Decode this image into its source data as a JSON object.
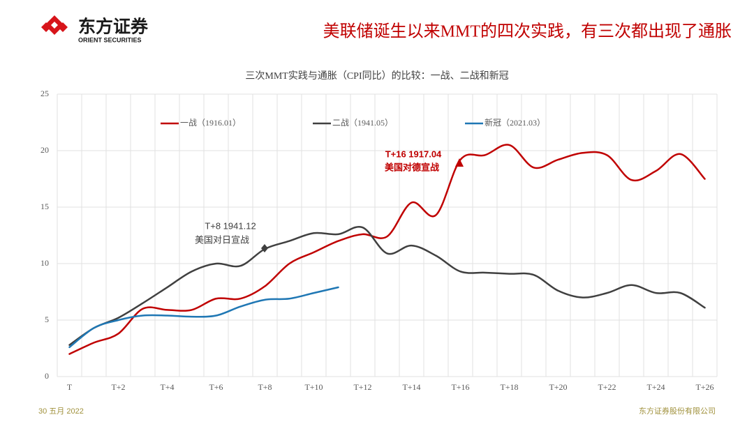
{
  "header": {
    "logo": "东方证券",
    "logo_sub": "ORIENT SECURITIES",
    "title": "美联储诞生以来MMT的四次实践，有三次都出现了通胀"
  },
  "chart_data": {
    "type": "line",
    "title": "三次MMT实践与通胀（CPI同比）的比较：一战、二战和新冠",
    "categories": [
      "T",
      null,
      "T+2",
      null,
      "T+4",
      null,
      "T+6",
      null,
      "T+8",
      null,
      "T+10",
      null,
      "T+12",
      null,
      "T+14",
      null,
      "T+16",
      null,
      "T+18",
      null,
      "T+20",
      null,
      "T+22",
      null,
      "T+24",
      null,
      "T+26"
    ],
    "series": [
      {
        "name": "一战（1916.01）",
        "color": "#c00000",
        "values": [
          2.0,
          3.0,
          3.8,
          6.0,
          5.9,
          5.9,
          6.9,
          6.9,
          8.0,
          10.0,
          11.0,
          12.0,
          12.6,
          12.4,
          15.4,
          14.3,
          19.2,
          19.6,
          20.5,
          18.5,
          19.2,
          19.8,
          19.6,
          17.4,
          18.2,
          19.7,
          17.5
        ]
      },
      {
        "name": "二战（1941.05）",
        "color": "#404040",
        "values": [
          2.8,
          4.3,
          5.2,
          6.5,
          7.9,
          9.3,
          10.0,
          9.8,
          11.3,
          12.0,
          12.7,
          12.6,
          13.2,
          10.9,
          11.6,
          10.7,
          9.3,
          9.2,
          9.1,
          9.0,
          7.6,
          7.0,
          7.4,
          8.1,
          7.4,
          7.4,
          6.1
        ]
      },
      {
        "name": "新冠（2021.03）",
        "color": "#1f77b4",
        "values": [
          2.6,
          4.3,
          5.0,
          5.4,
          5.4,
          5.3,
          5.4,
          6.2,
          6.8,
          6.9,
          7.4,
          7.9,
          null,
          null,
          null,
          null,
          null,
          null,
          null,
          null,
          null,
          null,
          null,
          null,
          null,
          null,
          null
        ]
      }
    ],
    "ylim": [
      0,
      25
    ],
    "yticks": [
      0,
      5,
      10,
      15,
      20,
      25
    ],
    "grid": true,
    "annotations": [
      {
        "title": "T+8 1941.12",
        "text": "美国对日宣战"
      },
      {
        "title": "T+16 1917.04",
        "text": "美国对德宣战"
      }
    ]
  },
  "footer": {
    "date": "30 五月 2022",
    "company": "东方证券股份有限公司"
  }
}
